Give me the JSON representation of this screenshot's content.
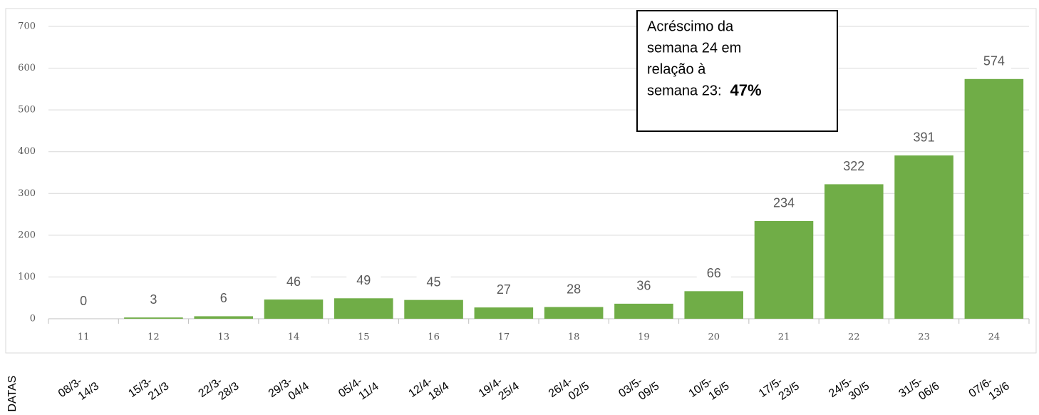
{
  "chart_data": {
    "type": "bar",
    "categories": [
      "11",
      "12",
      "13",
      "14",
      "15",
      "16",
      "17",
      "18",
      "19",
      "20",
      "21",
      "22",
      "23",
      "24"
    ],
    "values": [
      0,
      3,
      6,
      46,
      49,
      45,
      27,
      28,
      36,
      66,
      234,
      322,
      391,
      574
    ],
    "color": "#70ad47",
    "ylim": [
      0,
      700
    ],
    "yticks": [
      0,
      100,
      200,
      300,
      400,
      500,
      600,
      700
    ],
    "grid": true,
    "x_axis_label": "DATAS",
    "date_ranges": [
      [
        "08/3-",
        "14/3"
      ],
      [
        "15/3-",
        "21/3"
      ],
      [
        "22/3-",
        "28/3"
      ],
      [
        "29/3-",
        "04/4"
      ],
      [
        "05/4-",
        "11/4"
      ],
      [
        "12/4-",
        "18/4"
      ],
      [
        "19/4-",
        "25/4"
      ],
      [
        "26/4-",
        "02/5"
      ],
      [
        "03/5-",
        "09/5"
      ],
      [
        "10/5-",
        "16/5"
      ],
      [
        "17/5-",
        "23/5"
      ],
      [
        "24/5-",
        "30/5"
      ],
      [
        "31/5-",
        "06/6"
      ],
      [
        "07/6-",
        "13/6"
      ]
    ],
    "annotation": {
      "lines": [
        "Acréscimo da",
        "semana 24 em",
        "relação à",
        "semana 23:"
      ],
      "value": "47%"
    }
  }
}
